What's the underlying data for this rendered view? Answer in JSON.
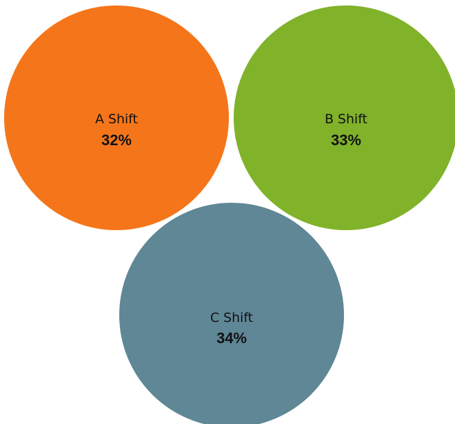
{
  "chart_data": {
    "type": "bubble",
    "title": "",
    "value_unit": "%",
    "bubbles": [
      {
        "label": "A Shift",
        "value": 32,
        "value_label": "32%",
        "color": "#F5761A"
      },
      {
        "label": "B Shift",
        "value": 33,
        "value_label": "33%",
        "color": "#80B22A"
      },
      {
        "label": "C Shift",
        "value": 34,
        "value_label": "34%",
        "color": "#5F8796"
      }
    ]
  }
}
